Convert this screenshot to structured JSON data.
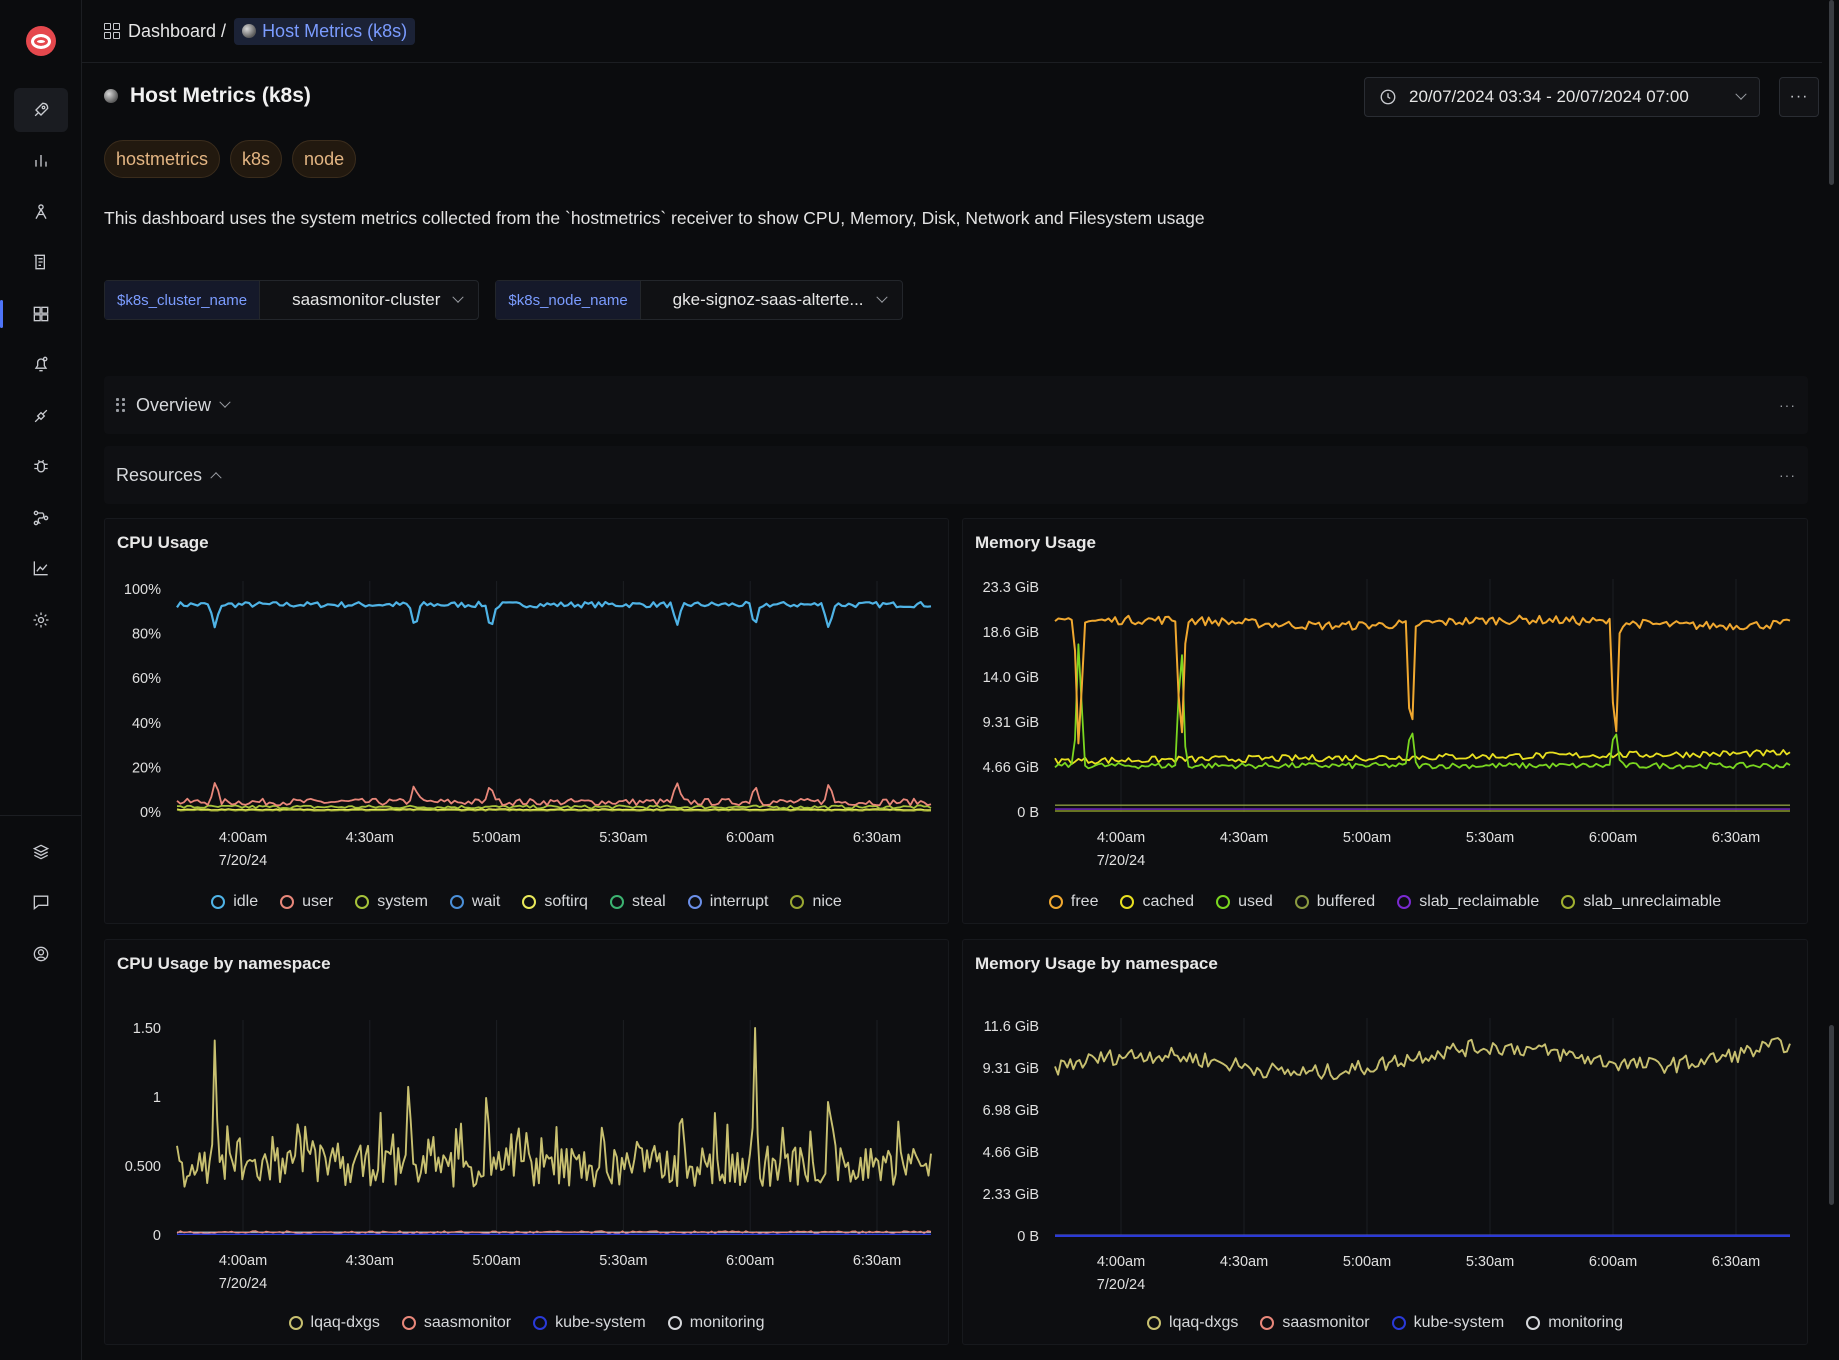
{
  "breadcrumb": {
    "root": "Dashboard /",
    "current": "Host Metrics (k8s)"
  },
  "header": {
    "title": "Host Metrics (k8s)",
    "time_range": "20/07/2024 03:34 - 20/07/2024 07:00",
    "more_label": "···"
  },
  "tags": [
    "hostmetrics",
    "k8s",
    "node"
  ],
  "description": "This dashboard uses the system metrics collected from the `hostmetrics` receiver to show CPU, Memory, Disk, Network and Filesystem usage",
  "variables": [
    {
      "name": "$k8s_cluster_name",
      "value": "saasmonitor-cluster"
    },
    {
      "name": "$k8s_node_name",
      "value": "gke-signoz-saas-alterte..."
    }
  ],
  "sections": [
    {
      "label": "Overview",
      "state": "collapsed"
    },
    {
      "label": "Resources",
      "state": "expanded"
    }
  ],
  "sidebar_icons": [
    "rocket-icon",
    "bar-chart-icon",
    "traces-icon",
    "logs-icon",
    "dashboard-icon",
    "alerts-icon",
    "integrations-icon",
    "bug-icon",
    "pipelines-icon",
    "metrics-icon",
    "settings-icon",
    "workspace-icon",
    "chat-icon",
    "user-icon"
  ],
  "colors": {
    "accent": "#4e74f8",
    "tag_text": "#e3b583"
  },
  "chart_data": [
    {
      "id": "cpu",
      "type": "line",
      "title": "CPU Usage",
      "xticks": [
        "4:00am",
        "4:30am",
        "5:00am",
        "5:30am",
        "6:00am",
        "6:30am"
      ],
      "xdate": "7/20/24",
      "yticks": [
        "100%",
        "80%",
        "60%",
        "40%",
        "20%",
        "0%"
      ],
      "ylim": [
        0,
        100
      ],
      "series": [
        {
          "name": "idle",
          "color": "#4fb3e6"
        },
        {
          "name": "user",
          "color": "#e8877a"
        },
        {
          "name": "system",
          "color": "#a6c23a"
        },
        {
          "name": "wait",
          "color": "#4a8fd8"
        },
        {
          "name": "softirq",
          "color": "#e8e85a"
        },
        {
          "name": "steal",
          "color": "#3cb371"
        },
        {
          "name": "interrupt",
          "color": "#6b8fe8"
        },
        {
          "name": "nice",
          "color": "#9aa832"
        }
      ]
    },
    {
      "id": "mem",
      "type": "line",
      "title": "Memory Usage",
      "xticks": [
        "4:00am",
        "4:30am",
        "5:00am",
        "5:30am",
        "6:00am",
        "6:30am"
      ],
      "xdate": "7/20/24",
      "yticks": [
        "23.3 GiB",
        "18.6 GiB",
        "14.0 GiB",
        "9.31 GiB",
        "4.66 GiB",
        "0 B"
      ],
      "ylim": [
        0,
        23.3
      ],
      "series": [
        {
          "name": "free",
          "color": "#f0a830"
        },
        {
          "name": "cached",
          "color": "#e8e020"
        },
        {
          "name": "used",
          "color": "#7ad620"
        },
        {
          "name": "buffered",
          "color": "#8a9a40"
        },
        {
          "name": "slab_reclaimable",
          "color": "#7a2ad0"
        },
        {
          "name": "slab_unreclaimable",
          "color": "#a0b030"
        }
      ]
    },
    {
      "id": "cpuns",
      "type": "line",
      "title": "CPU Usage by namespace",
      "xticks": [
        "4:00am",
        "4:30am",
        "5:00am",
        "5:30am",
        "6:00am",
        "6:30am"
      ],
      "xdate": "7/20/24",
      "yticks": [
        "1.50",
        "1",
        "0.500",
        "0"
      ],
      "ylim": [
        0,
        1.5
      ],
      "series": [
        {
          "name": "lqaq-dxgs",
          "color": "#c8c070"
        },
        {
          "name": "saasmonitor",
          "color": "#e8877a"
        },
        {
          "name": "kube-system",
          "color": "#2a3ad8"
        },
        {
          "name": "monitoring",
          "color": "#d6d8db"
        }
      ]
    },
    {
      "id": "memns",
      "type": "line",
      "title": "Memory Usage by namespace",
      "xticks": [
        "4:00am",
        "4:30am",
        "5:00am",
        "5:30am",
        "6:00am",
        "6:30am"
      ],
      "xdate": "7/20/24",
      "yticks": [
        "11.6 GiB",
        "9.31 GiB",
        "6.98 GiB",
        "4.66 GiB",
        "2.33 GiB",
        "0 B"
      ],
      "ylim": [
        0,
        11.6
      ],
      "series": [
        {
          "name": "lqaq-dxgs",
          "color": "#c8c070"
        },
        {
          "name": "saasmonitor",
          "color": "#e8877a"
        },
        {
          "name": "kube-system",
          "color": "#2a3ad8"
        },
        {
          "name": "monitoring",
          "color": "#d6d8db"
        }
      ]
    }
  ]
}
